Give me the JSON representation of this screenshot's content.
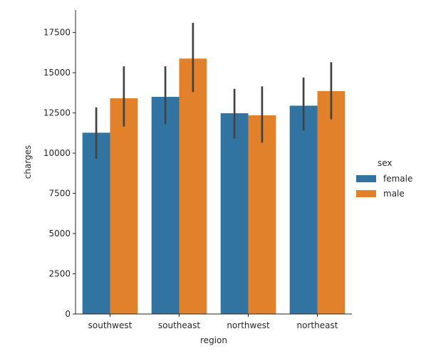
{
  "chart_data": {
    "type": "bar",
    "title": "",
    "xlabel": "region",
    "ylabel": "charges",
    "categories": [
      "southwest",
      "southeast",
      "northwest",
      "northeast"
    ],
    "ylim": [
      0,
      18900
    ],
    "yticks": [
      0,
      2500,
      5000,
      7500,
      10000,
      12500,
      15000,
      17500
    ],
    "grid": false,
    "legend": {
      "title": "sex",
      "placement": "right"
    },
    "series": [
      {
        "name": "female",
        "color": "#3274a1",
        "values": [
          11270,
          13500,
          12480,
          12950
        ],
        "ci_low": [
          9650,
          11800,
          10900,
          11400
        ],
        "ci_high": [
          12850,
          15400,
          14000,
          14700
        ]
      },
      {
        "name": "male",
        "color": "#e1812c",
        "values": [
          13410,
          15880,
          12350,
          13860
        ],
        "ci_low": [
          11650,
          13800,
          10650,
          12100
        ],
        "ci_high": [
          15400,
          18100,
          14150,
          15650
        ]
      }
    ],
    "errorbar_color": "#424242"
  }
}
